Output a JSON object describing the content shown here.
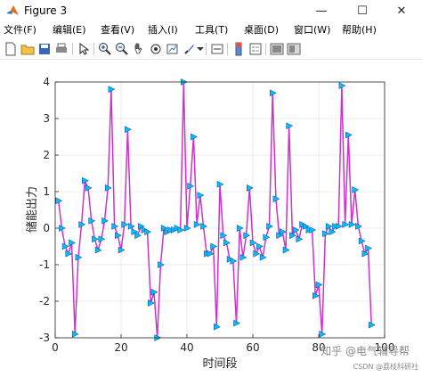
{
  "window": {
    "title": "Figure 3",
    "minimize_glyph": "—",
    "maximize_glyph": "☐",
    "close_glyph": "✕"
  },
  "menu": [
    "文件(F)",
    "编辑(E)",
    "查看(V)",
    "插入(I)",
    "工具(T)",
    "桌面(D)",
    "窗口(W)",
    "帮助(H)"
  ],
  "toolbar_icons": [
    "new-figure-icon",
    "open-file-icon",
    "save-icon",
    "print-icon",
    "arrow-select-icon",
    "zoom-in-icon",
    "zoom-out-icon",
    "pan-hand-icon",
    "rotate-3d-icon",
    "data-cursor-icon",
    "brush-icon",
    "dropdown-arrow-icon",
    "link-plot-icon",
    "colorbar-icon",
    "legend-icon",
    "hide-plot-tools-icon",
    "show-plot-tools-icon"
  ],
  "watermark": {
    "line1": "知乎 @电气辅导帮",
    "line2": "CSDN @荔枝科研社"
  },
  "chart_data": {
    "type": "line",
    "xlabel": "时间段",
    "ylabel": "储能出力",
    "xlim": [
      0,
      100
    ],
    "ylim": [
      -3,
      4
    ],
    "xticks": [
      0,
      20,
      40,
      60,
      80,
      100
    ],
    "yticks": [
      -3,
      -2,
      -1,
      0,
      1,
      2,
      3,
      4
    ],
    "grid": true,
    "line_color": "#cc33cc",
    "marker_color": "#00bfff",
    "marker": "triangle-right",
    "series": [
      {
        "x": [
          1,
          2,
          3,
          4,
          5,
          6,
          7,
          8,
          9,
          10,
          11,
          12,
          13,
          14,
          15,
          16,
          17,
          18,
          19,
          20,
          21,
          22,
          23,
          24,
          25,
          26,
          27,
          28,
          29,
          30,
          31,
          32,
          33,
          34,
          35,
          36,
          37,
          38,
          39,
          40,
          41,
          42,
          43,
          44,
          45,
          46,
          47,
          48,
          49,
          50,
          51,
          52,
          53,
          54,
          55,
          56,
          57,
          58,
          59,
          60,
          61,
          62,
          63,
          64,
          65,
          66,
          67,
          68,
          69,
          70,
          71,
          72,
          73,
          74,
          75,
          76,
          77,
          78,
          79,
          80,
          81,
          82,
          83,
          84,
          85,
          86,
          87,
          88,
          89,
          90,
          91,
          92,
          93,
          94,
          95,
          96
        ],
        "y": [
          0.75,
          0,
          -0.5,
          -0.7,
          -0.4,
          -2.9,
          -0.8,
          0.1,
          1.3,
          1.1,
          0.2,
          -0.3,
          -0.6,
          -0.3,
          0.2,
          1.1,
          3.8,
          0.05,
          -0.2,
          -0.6,
          0.1,
          2.7,
          0.05,
          -0.1,
          -0.2,
          0.05,
          -0.05,
          -0.1,
          -2.05,
          -1.75,
          -3,
          -1,
          0,
          -0.1,
          -0.05,
          -0.05,
          0,
          -0.05,
          4,
          0,
          1.15,
          2.5,
          0.1,
          0.9,
          0.05,
          -0.7,
          -0.7,
          -0.5,
          -2.7,
          1.2,
          -0.2,
          -0.4,
          -0.85,
          -0.9,
          -2.6,
          0,
          -0.8,
          -0.2,
          1.1,
          -0.4,
          -0.7,
          -0.5,
          -0.8,
          -0.25,
          0.05,
          3.7,
          0.8,
          -0.2,
          -0.1,
          -0.6,
          2.8,
          -0.2,
          -0.05,
          -0.3,
          0.1,
          0.05,
          -0.05,
          -0.05,
          -1.85,
          -1.55,
          -2.9,
          -0.15,
          0.05,
          -0.1,
          0.05,
          0.05,
          3.9,
          0.1,
          2.55,
          0.1,
          1.05,
          0.05,
          -0.35,
          -0.7,
          -0.55,
          -2.65
        ]
      }
    ]
  }
}
